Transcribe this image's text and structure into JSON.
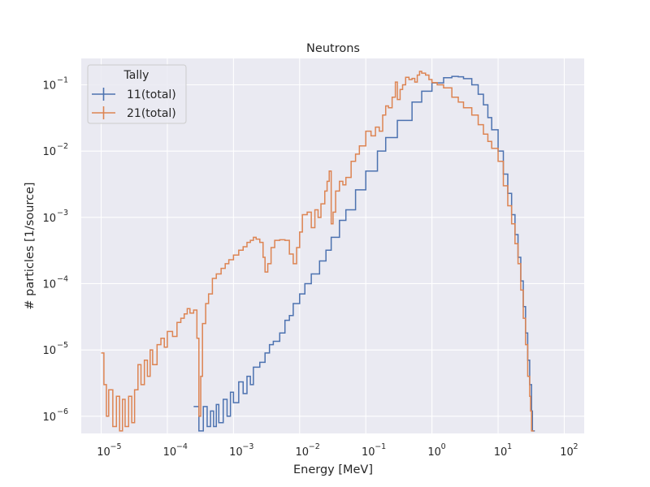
{
  "chart_data": {
    "type": "line",
    "title": "Neutrons",
    "xlabel": "Energy [MeV]",
    "ylabel": "# particles [1/source]",
    "x_scale": "log",
    "y_scale": "log",
    "xlim": [
      5e-06,
      200
    ],
    "ylim": [
      5.5e-07,
      0.25
    ],
    "grid": true,
    "x_ticks": [
      {
        "value": 1e-05,
        "base": "10",
        "exp": "−5"
      },
      {
        "value": 0.0001,
        "base": "10",
        "exp": "−4"
      },
      {
        "value": 0.001,
        "base": "10",
        "exp": "−3"
      },
      {
        "value": 0.01,
        "base": "10",
        "exp": "−2"
      },
      {
        "value": 0.1,
        "base": "10",
        "exp": "−1"
      },
      {
        "value": 1,
        "base": "10",
        "exp": "0"
      },
      {
        "value": 10,
        "base": "10",
        "exp": "1"
      },
      {
        "value": 100,
        "base": "10",
        "exp": "2"
      }
    ],
    "y_ticks": [
      {
        "value": 1e-06,
        "base": "10",
        "exp": "−6"
      },
      {
        "value": 1e-05,
        "base": "10",
        "exp": "−5"
      },
      {
        "value": 0.0001,
        "base": "10",
        "exp": "−4"
      },
      {
        "value": 0.001,
        "base": "10",
        "exp": "−3"
      },
      {
        "value": 0.01,
        "base": "10",
        "exp": "−2"
      },
      {
        "value": 0.1,
        "base": "10",
        "exp": "−1"
      }
    ],
    "legend": {
      "title": "Tally",
      "placement": "top-left"
    },
    "series": [
      {
        "name": "11(total)",
        "color": "#4c72b0",
        "points": [
          [
            0.00025,
            1.4e-06
          ],
          [
            0.0003,
            6e-07
          ],
          [
            0.00035,
            1.4e-06
          ],
          [
            0.0004,
            7e-07
          ],
          [
            0.00045,
            1.2e-06
          ],
          [
            0.0005,
            7e-07
          ],
          [
            0.00055,
            1.5e-06
          ],
          [
            0.0006,
            8e-07
          ],
          [
            0.0007,
            1.8e-06
          ],
          [
            0.0008,
            1e-06
          ],
          [
            0.0009,
            2.3e-06
          ],
          [
            0.001,
            1.6e-06
          ],
          [
            0.0012,
            3.3e-06
          ],
          [
            0.0014,
            2.2e-06
          ],
          [
            0.0016,
            4e-06
          ],
          [
            0.0018,
            3e-06
          ],
          [
            0.002,
            5.5e-06
          ],
          [
            0.0025,
            6.5e-06
          ],
          [
            0.003,
            9e-06
          ],
          [
            0.0035,
            1.2e-05
          ],
          [
            0.004,
            1.35e-05
          ],
          [
            0.005,
            1.8e-05
          ],
          [
            0.006,
            2.8e-05
          ],
          [
            0.007,
            3.3e-05
          ],
          [
            0.008,
            5e-05
          ],
          [
            0.01,
            7e-05
          ],
          [
            0.012,
            0.0001
          ],
          [
            0.015,
            0.00014
          ],
          [
            0.02,
            0.00022
          ],
          [
            0.025,
            0.00032
          ],
          [
            0.03,
            0.0005
          ],
          [
            0.04,
            0.0009
          ],
          [
            0.05,
            0.0013
          ],
          [
            0.07,
            0.0026
          ],
          [
            0.1,
            0.005
          ],
          [
            0.15,
            0.01
          ],
          [
            0.2,
            0.016
          ],
          [
            0.3,
            0.029
          ],
          [
            0.5,
            0.055
          ],
          [
            0.7,
            0.08
          ],
          [
            1,
            0.107
          ],
          [
            1.5,
            0.128
          ],
          [
            2,
            0.134
          ],
          [
            2.5,
            0.132
          ],
          [
            3,
            0.124
          ],
          [
            4,
            0.1
          ],
          [
            5,
            0.072
          ],
          [
            6,
            0.05
          ],
          [
            7,
            0.032
          ],
          [
            8,
            0.021
          ],
          [
            10,
            0.01
          ],
          [
            12,
            0.0045
          ],
          [
            14,
            0.0023
          ],
          [
            16,
            0.0011
          ],
          [
            18,
            0.00055
          ],
          [
            20,
            0.00025
          ],
          [
            22,
            0.00011
          ],
          [
            24,
            4.5e-05
          ],
          [
            26,
            1.8e-05
          ],
          [
            28,
            7e-06
          ],
          [
            30,
            3e-06
          ],
          [
            32,
            1.2e-06
          ],
          [
            33,
            6e-07
          ]
        ]
      },
      {
        "name": "21(total)",
        "color": "#dd8452",
        "points": [
          [
            1e-05,
            9e-06
          ],
          [
            1.1e-05,
            3e-06
          ],
          [
            1.2e-05,
            1e-06
          ],
          [
            1.3e-05,
            2.5e-06
          ],
          [
            1.5e-05,
            7e-07
          ],
          [
            1.7e-05,
            2e-06
          ],
          [
            1.9e-05,
            6e-07
          ],
          [
            2.1e-05,
            1.8e-06
          ],
          [
            2.3e-05,
            7e-07
          ],
          [
            2.6e-05,
            2e-06
          ],
          [
            2.9e-05,
            8e-07
          ],
          [
            3.2e-05,
            2.5e-06
          ],
          [
            3.6e-05,
            6e-06
          ],
          [
            4e-05,
            3e-06
          ],
          [
            4.5e-05,
            7e-06
          ],
          [
            5e-05,
            4e-06
          ],
          [
            5.5e-05,
            1e-05
          ],
          [
            6e-05,
            6e-06
          ],
          [
            7e-05,
            1.2e-05
          ],
          [
            8e-05,
            1.5e-05
          ],
          [
            9e-05,
            1.1e-05
          ],
          [
            0.0001,
            1.9e-05
          ],
          [
            0.00012,
            1.6e-05
          ],
          [
            0.00014,
            2.6e-05
          ],
          [
            0.00016,
            3e-05
          ],
          [
            0.00018,
            3.5e-05
          ],
          [
            0.0002,
            4.2e-05
          ],
          [
            0.00022,
            3.6e-05
          ],
          [
            0.00025,
            4e-05
          ],
          [
            0.00028,
            1.5e-05
          ],
          [
            0.0003,
            1e-06
          ],
          [
            0.00032,
            4e-06
          ],
          [
            0.00034,
            2.5e-05
          ],
          [
            0.00038,
            5e-05
          ],
          [
            0.00042,
            7e-05
          ],
          [
            0.00048,
            0.00012
          ],
          [
            0.00055,
            0.00014
          ],
          [
            0.00065,
            0.00017
          ],
          [
            0.00075,
            0.0002
          ],
          [
            0.00085,
            0.00023
          ],
          [
            0.001,
            0.00027
          ],
          [
            0.0012,
            0.00032
          ],
          [
            0.0014,
            0.00036
          ],
          [
            0.0016,
            0.00042
          ],
          [
            0.0018,
            0.00045
          ],
          [
            0.002,
            0.0005
          ],
          [
            0.0022,
            0.00047
          ],
          [
            0.0025,
            0.00042
          ],
          [
            0.0028,
            0.00025
          ],
          [
            0.003,
            0.00015
          ],
          [
            0.0033,
            0.0002
          ],
          [
            0.0037,
            0.00035
          ],
          [
            0.0042,
            0.00045
          ],
          [
            0.005,
            0.00046
          ],
          [
            0.006,
            0.00045
          ],
          [
            0.007,
            0.00028
          ],
          [
            0.008,
            0.0002
          ],
          [
            0.009,
            0.00035
          ],
          [
            0.01,
            0.0006
          ],
          [
            0.011,
            0.0011
          ],
          [
            0.013,
            0.0012
          ],
          [
            0.015,
            0.0007
          ],
          [
            0.017,
            0.0013
          ],
          [
            0.019,
            0.001
          ],
          [
            0.021,
            0.0016
          ],
          [
            0.024,
            0.0025
          ],
          [
            0.026,
            0.0035
          ],
          [
            0.028,
            0.005
          ],
          [
            0.03,
            0.0008
          ],
          [
            0.032,
            0.0012
          ],
          [
            0.035,
            0.0025
          ],
          [
            0.04,
            0.0035
          ],
          [
            0.045,
            0.0031
          ],
          [
            0.05,
            0.004
          ],
          [
            0.06,
            0.007
          ],
          [
            0.07,
            0.009
          ],
          [
            0.08,
            0.012
          ],
          [
            0.1,
            0.02
          ],
          [
            0.12,
            0.017
          ],
          [
            0.14,
            0.023
          ],
          [
            0.16,
            0.02
          ],
          [
            0.18,
            0.035
          ],
          [
            0.2,
            0.048
          ],
          [
            0.22,
            0.045
          ],
          [
            0.25,
            0.065
          ],
          [
            0.28,
            0.11
          ],
          [
            0.3,
            0.06
          ],
          [
            0.33,
            0.085
          ],
          [
            0.36,
            0.1
          ],
          [
            0.4,
            0.13
          ],
          [
            0.45,
            0.12
          ],
          [
            0.5,
            0.125
          ],
          [
            0.55,
            0.11
          ],
          [
            0.6,
            0.14
          ],
          [
            0.65,
            0.16
          ],
          [
            0.7,
            0.15
          ],
          [
            0.8,
            0.14
          ],
          [
            0.9,
            0.12
          ],
          [
            1,
            0.108
          ],
          [
            1.2,
            0.1
          ],
          [
            1.5,
            0.09
          ],
          [
            2,
            0.065
          ],
          [
            2.5,
            0.055
          ],
          [
            3,
            0.045
          ],
          [
            4,
            0.035
          ],
          [
            5,
            0.025
          ],
          [
            6,
            0.018
          ],
          [
            7,
            0.014
          ],
          [
            8,
            0.011
          ],
          [
            10,
            0.007
          ],
          [
            12,
            0.003
          ],
          [
            14,
            0.0015
          ],
          [
            16,
            0.0008
          ],
          [
            18,
            0.0004
          ],
          [
            20,
            0.0002
          ],
          [
            22,
            8e-05
          ],
          [
            24,
            3e-05
          ],
          [
            26,
            1.2e-05
          ],
          [
            28,
            4e-06
          ],
          [
            30,
            2e-06
          ],
          [
            31,
            1.2e-06
          ],
          [
            32,
            6e-07
          ]
        ]
      }
    ]
  }
}
